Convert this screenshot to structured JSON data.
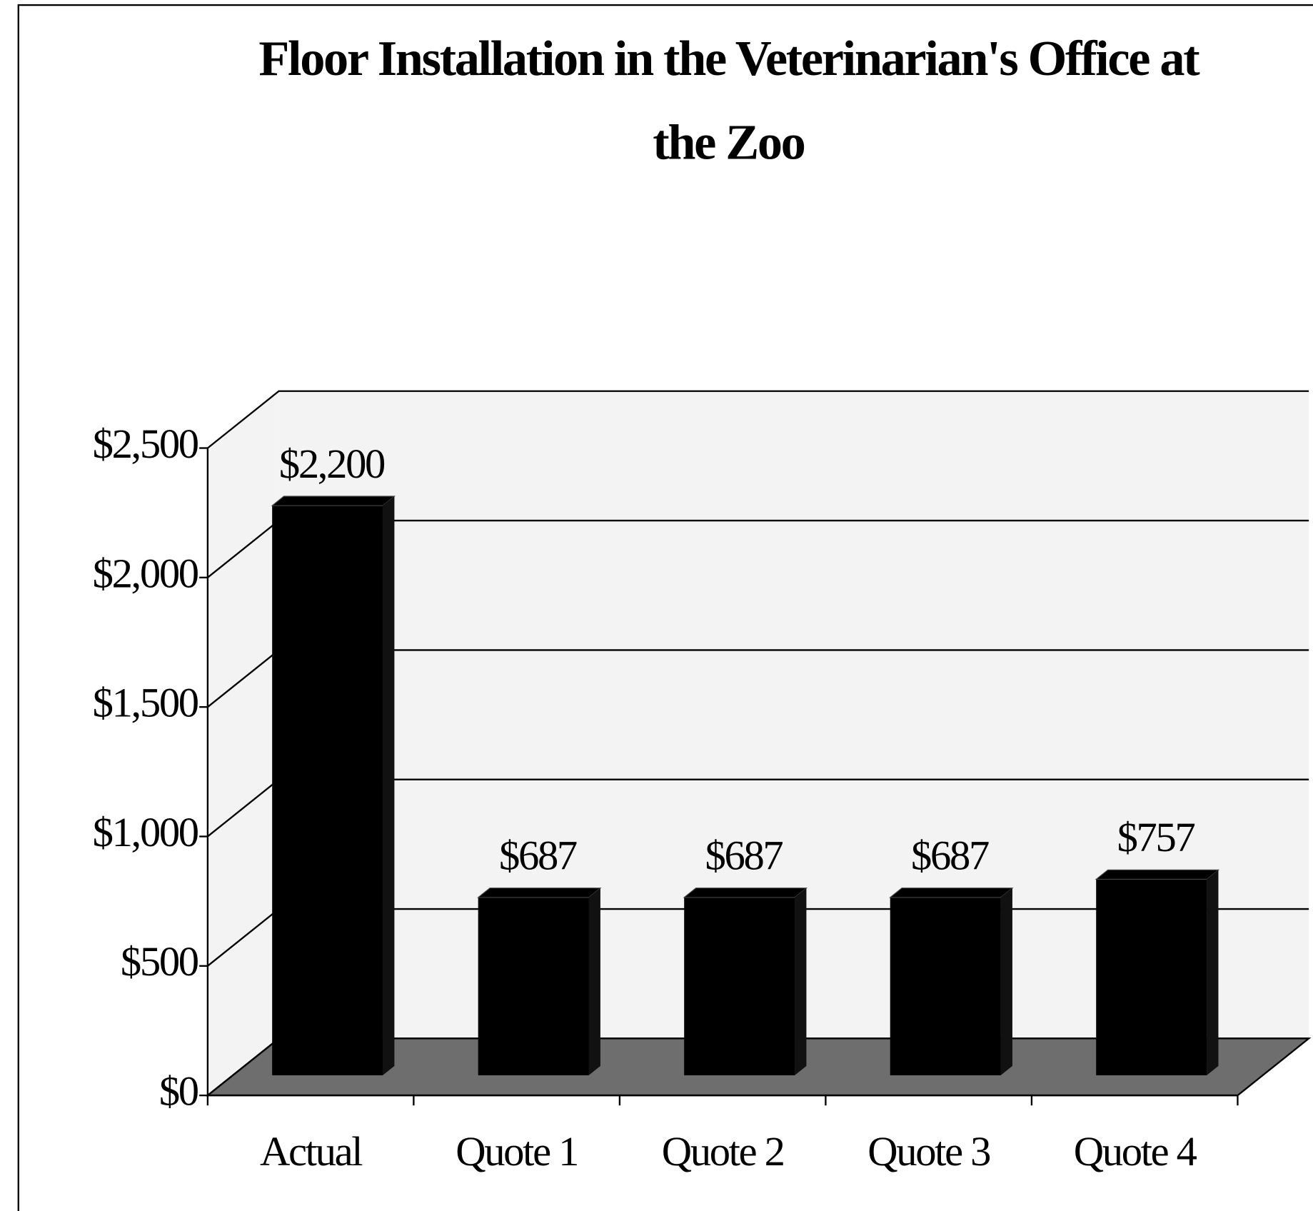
{
  "chart_data": {
    "type": "bar",
    "title": "Floor Installation in the Veterinarian's Office at the Zoo",
    "categories": [
      "Actual",
      "Quote 1",
      "Quote 2",
      "Quote 3",
      "Quote 4"
    ],
    "values": [
      2200,
      687,
      687,
      687,
      757
    ],
    "value_labels": [
      "$2,200",
      "$687",
      "$687",
      "$687",
      "$757"
    ],
    "color": "#000000",
    "ylim": [
      0,
      2500
    ],
    "yticks": [
      {
        "value": 0,
        "label": "$0"
      },
      {
        "value": 500,
        "label": "$500"
      },
      {
        "value": 1000,
        "label": "$1,000"
      },
      {
        "value": 1500,
        "label": "$1,500"
      },
      {
        "value": 2000,
        "label": "$2,000"
      },
      {
        "value": 2500,
        "label": "$2,500"
      }
    ],
    "grid": true
  }
}
